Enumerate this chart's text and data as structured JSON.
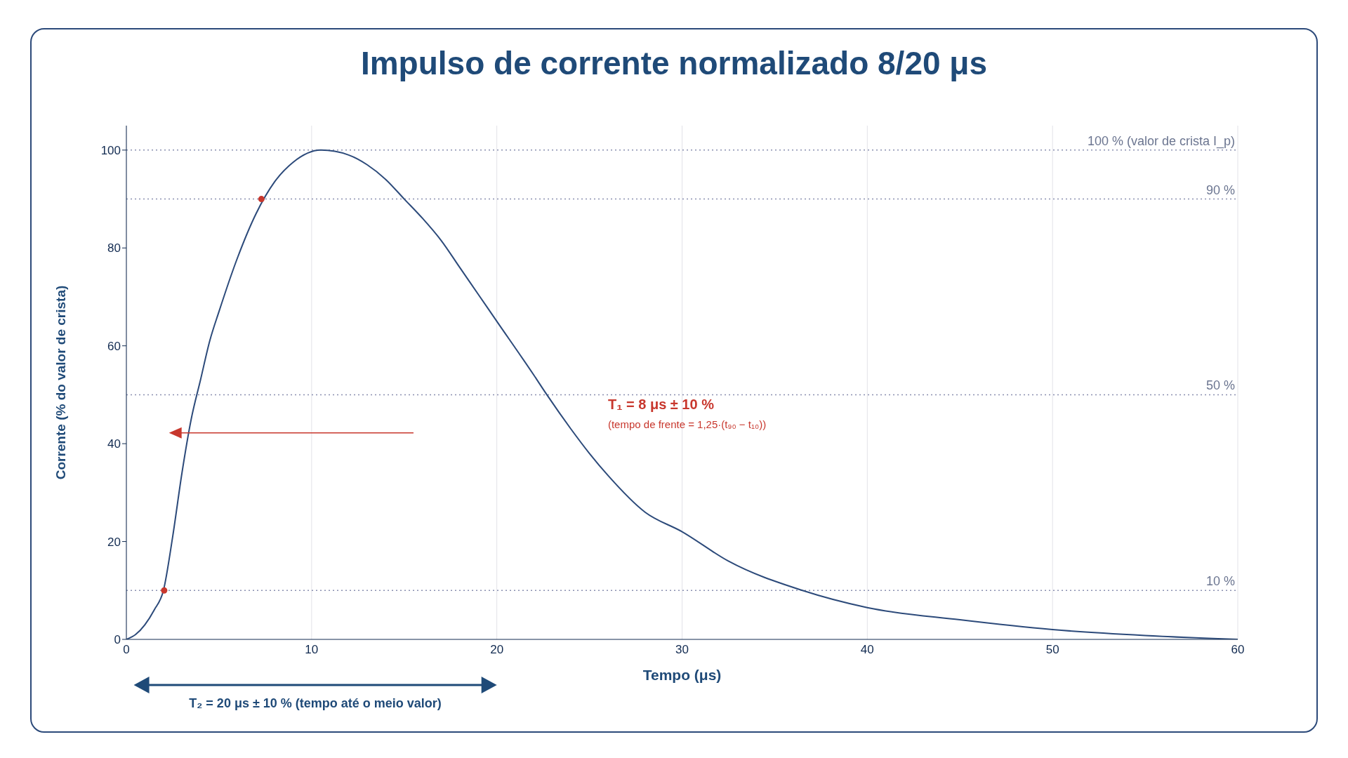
{
  "chart_data": {
    "type": "line",
    "title": "Impulso de corrente normalizado 8/20 μs",
    "xlabel": "Tempo (μs)",
    "ylabel": "Corrente (% do valor de crista)",
    "series": [
      {
        "color": "#2c4a7a",
        "marker": "none",
        "line_style": "solid",
        "x": [
          0,
          0.5,
          1,
          1.5,
          2,
          2.5,
          3,
          3.5,
          4,
          4.5,
          5,
          6,
          7,
          8,
          9,
          10.5,
          12,
          13,
          14,
          15,
          16,
          17,
          18,
          19,
          20,
          22,
          22.7,
          24,
          25,
          26,
          28,
          30,
          32.5,
          36.5,
          40,
          45,
          50,
          55,
          60
        ],
        "values": [
          0,
          1,
          3,
          6,
          10,
          21,
          34,
          45,
          53,
          61,
          67,
          78,
          87,
          93.5,
          97.5,
          100,
          99,
          97,
          94,
          90,
          86,
          81.5,
          76,
          70.5,
          65,
          54,
          50,
          43,
          38,
          33.5,
          26,
          22,
          16,
          10,
          6.5,
          4,
          2,
          0.8,
          0
        ]
      },
      {
        "type": "scatter",
        "color": "#c8372d",
        "marker": "circle",
        "x": [
          2.04,
          7.29
        ],
        "values": [
          10,
          90
        ]
      }
    ],
    "xlim": [
      0,
      60
    ],
    "xticks": [
      0,
      10,
      20,
      30,
      40,
      50,
      60
    ],
    "ylim": [
      0,
      105
    ],
    "yticks": [
      0,
      20,
      40,
      60,
      80,
      100
    ],
    "grid": "x",
    "ref_lines": [
      {
        "axis": "y",
        "value": 100,
        "label": "100 % (valor de crista I_p)",
        "color": "#8a8fb0",
        "line_style": "dotted"
      },
      {
        "axis": "y",
        "value": 90,
        "label": "90 %",
        "color": "#8a8fb0",
        "line_style": "dotted"
      },
      {
        "axis": "y",
        "value": 50,
        "label": "50 %",
        "color": "#8a8fb0",
        "line_style": "dotted"
      },
      {
        "axis": "y",
        "value": 10,
        "label": "10 %",
        "color": "#8a8fb0",
        "line_style": "dotted"
      }
    ],
    "annotations": [
      "T₁ = 8 μs ± 10 %",
      "(tempo de frente = 1,25·(t₉₀ − t₁₀))",
      "T₂ = 20 μs ± 10 % (tempo até o meio valor)"
    ]
  }
}
